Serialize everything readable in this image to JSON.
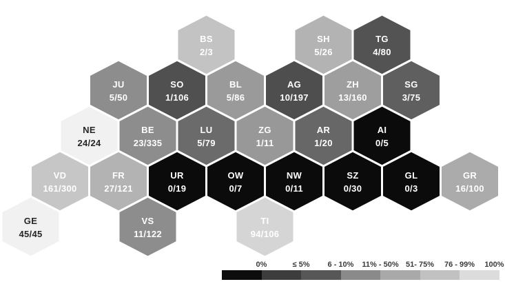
{
  "chart_data": {
    "type": "heatmap",
    "subtype": "hex-tile-map",
    "region": "Swiss cantons",
    "value_format": "numerator/denominator",
    "tiles": [
      {
        "code": "BS",
        "value": "2/3",
        "numerator": 2,
        "denominator": 3,
        "percent": 66.7,
        "row": 1,
        "col": 6,
        "fill": "#c3c3c3",
        "text_color": "#ffffff"
      },
      {
        "code": "SH",
        "value": "5/26",
        "numerator": 5,
        "denominator": 26,
        "percent": 19.2,
        "row": 1,
        "col": 10,
        "fill": "#b3b3b3",
        "text_color": "#ffffff"
      },
      {
        "code": "TG",
        "value": "4/80",
        "numerator": 4,
        "denominator": 80,
        "percent": 5.0,
        "row": 1,
        "col": 12,
        "fill": "#535353",
        "text_color": "#ffffff"
      },
      {
        "code": "JU",
        "value": "5/50",
        "numerator": 5,
        "denominator": 50,
        "percent": 10.0,
        "row": 2,
        "col": 3,
        "fill": "#8d8d8d",
        "text_color": "#ffffff"
      },
      {
        "code": "SO",
        "value": "1/106",
        "numerator": 1,
        "denominator": 106,
        "percent": 0.9,
        "row": 2,
        "col": 5,
        "fill": "#505050",
        "text_color": "#ffffff"
      },
      {
        "code": "BL",
        "value": "5/86",
        "numerator": 5,
        "denominator": 86,
        "percent": 5.8,
        "row": 2,
        "col": 7,
        "fill": "#9a9a9a",
        "text_color": "#ffffff"
      },
      {
        "code": "AG",
        "value": "10/197",
        "numerator": 10,
        "denominator": 197,
        "percent": 5.1,
        "row": 2,
        "col": 9,
        "fill": "#4e4e4e",
        "text_color": "#ffffff"
      },
      {
        "code": "ZH",
        "value": "13/160",
        "numerator": 13,
        "denominator": 160,
        "percent": 8.1,
        "row": 2,
        "col": 11,
        "fill": "#9e9e9e",
        "text_color": "#ffffff"
      },
      {
        "code": "SG",
        "value": "3/75",
        "numerator": 3,
        "denominator": 75,
        "percent": 4.0,
        "row": 2,
        "col": 13,
        "fill": "#5f5f5f",
        "text_color": "#ffffff"
      },
      {
        "code": "NE",
        "value": "24/24",
        "numerator": 24,
        "denominator": 24,
        "percent": 100.0,
        "row": 3,
        "col": 2,
        "fill": "#f1f1f1",
        "text_color": "#262626"
      },
      {
        "code": "BE",
        "value": "23/335",
        "numerator": 23,
        "denominator": 335,
        "percent": 6.9,
        "row": 3,
        "col": 4,
        "fill": "#8d8d8d",
        "text_color": "#ffffff"
      },
      {
        "code": "LU",
        "value": "5/79",
        "numerator": 5,
        "denominator": 79,
        "percent": 6.3,
        "row": 3,
        "col": 6,
        "fill": "#6b6b6b",
        "text_color": "#ffffff"
      },
      {
        "code": "ZG",
        "value": "1/11",
        "numerator": 1,
        "denominator": 11,
        "percent": 9.1,
        "row": 3,
        "col": 8,
        "fill": "#989898",
        "text_color": "#ffffff"
      },
      {
        "code": "AR",
        "value": "1/20",
        "numerator": 1,
        "denominator": 20,
        "percent": 5.0,
        "row": 3,
        "col": 10,
        "fill": "#676767",
        "text_color": "#ffffff"
      },
      {
        "code": "AI",
        "value": "0/5",
        "numerator": 0,
        "denominator": 5,
        "percent": 0.0,
        "row": 3,
        "col": 12,
        "fill": "#0b0b0b",
        "text_color": "#ffffff"
      },
      {
        "code": "VD",
        "value": "161/300",
        "numerator": 161,
        "denominator": 300,
        "percent": 53.7,
        "row": 4,
        "col": 1,
        "fill": "#c6c6c6",
        "text_color": "#ffffff"
      },
      {
        "code": "FR",
        "value": "27/121",
        "numerator": 27,
        "denominator": 121,
        "percent": 22.3,
        "row": 4,
        "col": 3,
        "fill": "#b3b3b3",
        "text_color": "#ffffff"
      },
      {
        "code": "UR",
        "value": "0/19",
        "numerator": 0,
        "denominator": 19,
        "percent": 0.0,
        "row": 4,
        "col": 5,
        "fill": "#0b0b0b",
        "text_color": "#ffffff"
      },
      {
        "code": "OW",
        "value": "0/7",
        "numerator": 0,
        "denominator": 7,
        "percent": 0.0,
        "row": 4,
        "col": 7,
        "fill": "#0b0b0b",
        "text_color": "#ffffff"
      },
      {
        "code": "NW",
        "value": "0/11",
        "numerator": 0,
        "denominator": 11,
        "percent": 0.0,
        "row": 4,
        "col": 9,
        "fill": "#0b0b0b",
        "text_color": "#ffffff"
      },
      {
        "code": "SZ",
        "value": "0/30",
        "numerator": 0,
        "denominator": 30,
        "percent": 0.0,
        "row": 4,
        "col": 11,
        "fill": "#0b0b0b",
        "text_color": "#ffffff"
      },
      {
        "code": "GL",
        "value": "0/3",
        "numerator": 0,
        "denominator": 3,
        "percent": 0.0,
        "row": 4,
        "col": 13,
        "fill": "#0b0b0b",
        "text_color": "#ffffff"
      },
      {
        "code": "GR",
        "value": "16/100",
        "numerator": 16,
        "denominator": 100,
        "percent": 16.0,
        "row": 4,
        "col": 15,
        "fill": "#ababab",
        "text_color": "#ffffff"
      },
      {
        "code": "GE",
        "value": "45/45",
        "numerator": 45,
        "denominator": 45,
        "percent": 100.0,
        "row": 5,
        "col": 0,
        "fill": "#f1f1f1",
        "text_color": "#262626"
      },
      {
        "code": "VS",
        "value": "11/122",
        "numerator": 11,
        "denominator": 122,
        "percent": 9.0,
        "row": 5,
        "col": 4,
        "fill": "#8d8d8d",
        "text_color": "#ffffff"
      },
      {
        "code": "TI",
        "value": "94/106",
        "numerator": 94,
        "denominator": 106,
        "percent": 88.7,
        "row": 5,
        "col": 8,
        "fill": "#d5d5d5",
        "text_color": "#ffffff"
      }
    ],
    "legend": {
      "position": "bottom-right",
      "labels": [
        "0%",
        "≤ 5%",
        "6 - 10%",
        "11% - 50%",
        "51- 75%",
        "76 - 99%",
        "100%"
      ],
      "colors": [
        "#0d0d0d",
        "#3d3d3d",
        "#575757",
        "#8a8a8a",
        "#a9a9a9",
        "#c1c1c1",
        "#dcdcdc"
      ]
    },
    "colors": {
      "background": "#ffffff",
      "hex_border": "#ffffff"
    }
  }
}
